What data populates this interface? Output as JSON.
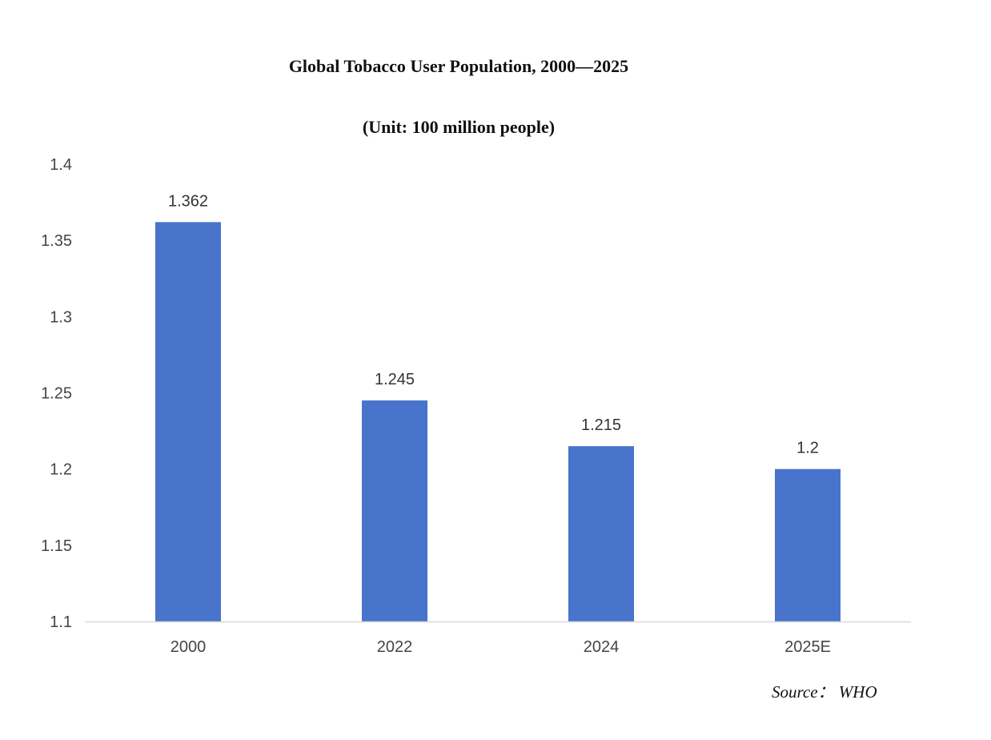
{
  "chart_data": {
    "type": "bar",
    "title": "Global Tobacco User Population, 2000—2025",
    "subtitle": "(Unit: 100 million people)",
    "xlabel": "",
    "ylabel": "",
    "categories": [
      "2000",
      "2022",
      "2024",
      "2025E"
    ],
    "values": [
      1.362,
      1.245,
      1.215,
      1.2
    ],
    "data_labels": [
      "1.362",
      "1.245",
      "1.215",
      "1.2"
    ],
    "ylim": [
      1.1,
      1.4
    ],
    "yticks": [
      1.1,
      1.15,
      1.2,
      1.25,
      1.3,
      1.35,
      1.4
    ],
    "ytick_labels": [
      "1.1",
      "1.15",
      "1.2",
      "1.25",
      "1.3",
      "1.35",
      "1.4"
    ],
    "grid": false,
    "legend": "none",
    "bar_color": "#4874CB",
    "axis_color": "#D9D9D9"
  },
  "source": "Source： WHO"
}
